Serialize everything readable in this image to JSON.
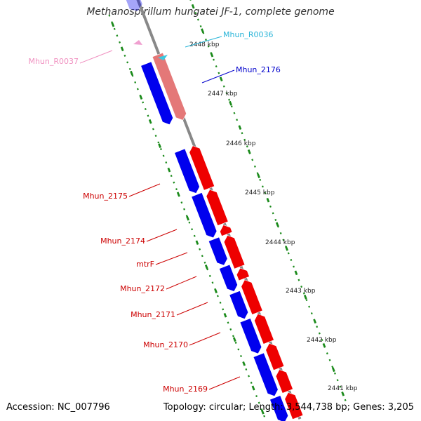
{
  "title": "Methanospirillum hungatei JF-1, complete genome",
  "footer": {
    "accession": "Accession: NC_007796",
    "summary": "Topology: circular; Length: 3,544,738 bp; Genes: 3,205"
  },
  "colors": {
    "reverse_cds": "#0000ee",
    "forward_cds": "#ee0000",
    "forward_cds_faded": "#e47878",
    "trna_forward": "#3cc8e0",
    "trna_reverse": "#f0a0d0",
    "label_red": "#cc0000",
    "label_blue": "#0000cc",
    "label_cyan": "#28b4d8",
    "label_pink": "#f090c0",
    "tick_ring": "#1a8a1a",
    "backbone": "#888888"
  },
  "ticks": [
    {
      "label": "2448 kbp"
    },
    {
      "label": "2447 kbp"
    },
    {
      "label": "2446 kbp"
    },
    {
      "label": "2445 kbp"
    },
    {
      "label": "2444 kbp"
    },
    {
      "label": "2443 kbp"
    },
    {
      "label": "2442 kbp"
    },
    {
      "label": "2441 kbp"
    }
  ],
  "labels": [
    {
      "text": "Mhun_R0036",
      "color": "label_cyan"
    },
    {
      "text": "Mhun_R0037",
      "color": "label_pink"
    },
    {
      "text": "Mhun_2176",
      "color": "label_blue"
    },
    {
      "text": "Mhun_2175",
      "color": "label_red"
    },
    {
      "text": "Mhun_2174",
      "color": "label_red"
    },
    {
      "text": "mtrF",
      "color": "label_red"
    },
    {
      "text": "Mhun_2172",
      "color": "label_red"
    },
    {
      "text": "Mhun_2171",
      "color": "label_red"
    },
    {
      "text": "Mhun_2170",
      "color": "label_red"
    },
    {
      "text": "Mhun_2169",
      "color": "label_red"
    }
  ]
}
